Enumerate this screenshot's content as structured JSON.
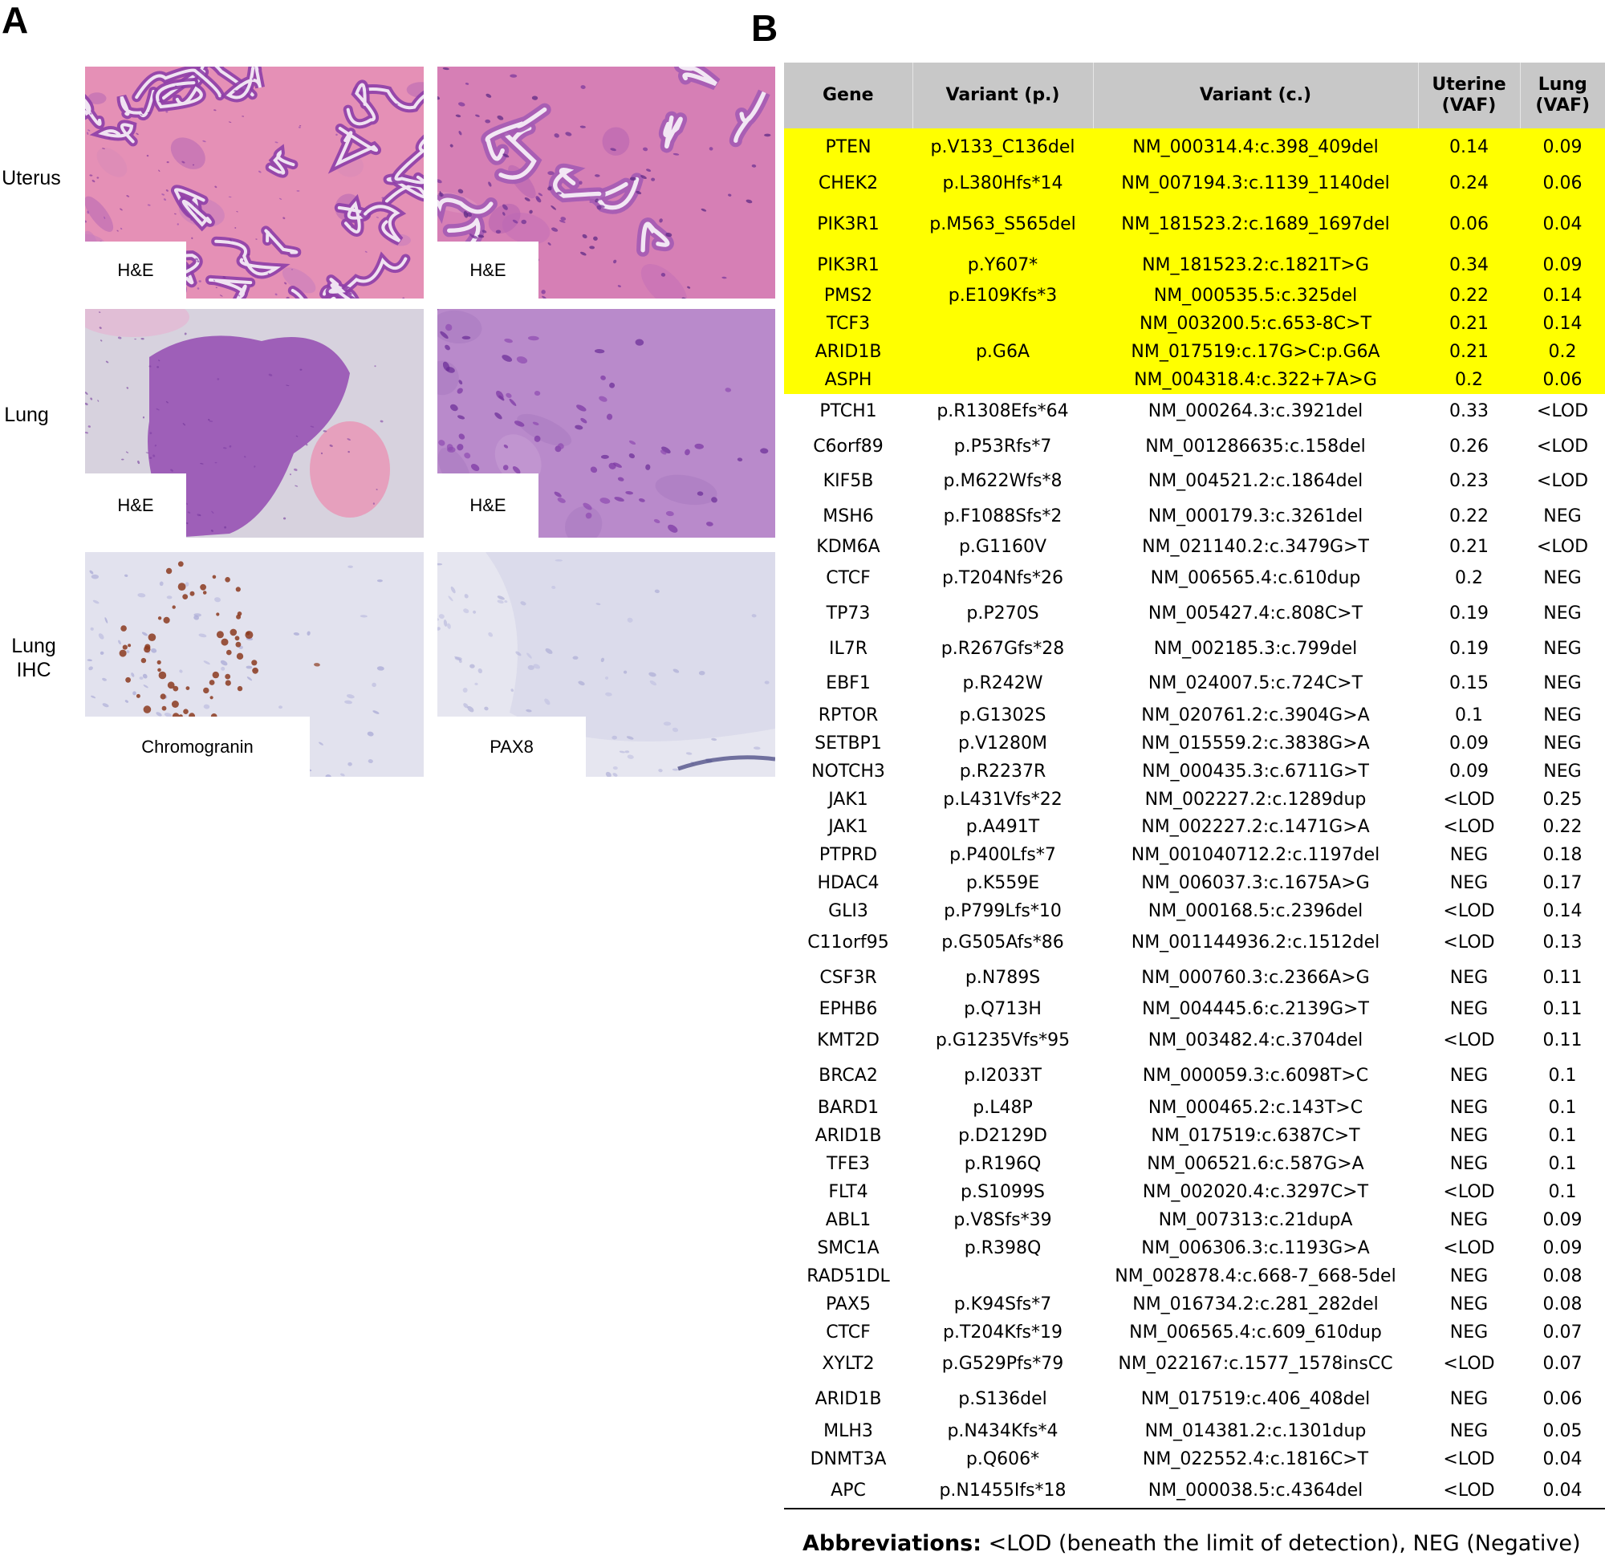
{
  "panels": {
    "a": "A",
    "b": "B"
  },
  "row_labels": {
    "uterus": "Uterus",
    "lung": "Lung",
    "lung_ihc": "Lung\nIHC"
  },
  "images": [
    {
      "id": "uterus-low",
      "label": "H&E",
      "stain": "he"
    },
    {
      "id": "uterus-high",
      "label": "H&E",
      "stain": "he"
    },
    {
      "id": "lung-low",
      "label": "H&E",
      "stain": "he-lung"
    },
    {
      "id": "lung-high",
      "label": "H&E",
      "stain": "he-lung-high"
    },
    {
      "id": "lung-chromogranin",
      "label": "Chromogranin",
      "stain": "ihc-positive"
    },
    {
      "id": "lung-pax8",
      "label": "PAX8",
      "stain": "ihc-negative"
    }
  ],
  "colors": {
    "highlight": "#ffff00",
    "header_bg": "#c8c8c8",
    "he_pink": "#e98fb0",
    "he_purple": "#a052b8",
    "ihc_brown": "#8b3a1e",
    "ihc_blue": "#b8b8d8"
  },
  "table": {
    "headers": [
      "Gene",
      "Variant (p.)",
      "Variant (c.)",
      "Uterine\n(VAF)",
      "Lung\n(VAF)"
    ],
    "rows": [
      {
        "gene": "PTEN",
        "p": "p.V133_C136del",
        "c": "NM_000314.4:c.398_409del",
        "uterine": "0.14",
        "lung": "0.09",
        "highlight": true
      },
      {
        "gene": "CHEK2",
        "p": "p.L380Hfs*14",
        "c": "NM_007194.3:c.1139_1140del",
        "uterine": "0.24",
        "lung": "0.06",
        "highlight": true
      },
      {
        "gene": "PIK3R1",
        "p": "p.M563_S565del",
        "c": "NM_181523.2:c.1689_1697del",
        "uterine": "0.06",
        "lung": "0.04",
        "highlight": true
      },
      {
        "gene": "PIK3R1",
        "p": "p.Y607*",
        "c": "NM_181523.2:c.1821T>G",
        "uterine": "0.34",
        "lung": "0.09",
        "highlight": true
      },
      {
        "gene": "PMS2",
        "p": "p.E109Kfs*3",
        "c": "NM_000535.5:c.325del",
        "uterine": "0.22",
        "lung": "0.14",
        "highlight": true
      },
      {
        "gene": "TCF3",
        "p": "",
        "c": "NM_003200.5:c.653-8C>T",
        "uterine": "0.21",
        "lung": "0.14",
        "highlight": true
      },
      {
        "gene": "ARID1B",
        "p": "p.G6A",
        "c": "NM_017519:c.17G>C:p.G6A",
        "uterine": "0.21",
        "lung": "0.2",
        "highlight": true
      },
      {
        "gene": "ASPH",
        "p": "",
        "c": "NM_004318.4:c.322+7A>G",
        "uterine": "0.2",
        "lung": "0.06",
        "highlight": true
      },
      {
        "gene": "PTCH1",
        "p": "p.R1308Efs*64",
        "c": "NM_000264.3:c.3921del",
        "uterine": "0.33",
        "lung": "<LOD"
      },
      {
        "gene": "C6orf89",
        "p": "p.P53Rfs*7",
        "c": "NM_001286635:c.158del",
        "uterine": "0.26",
        "lung": "<LOD"
      },
      {
        "gene": "KIF5B",
        "p": "p.M622Wfs*8",
        "c": "NM_004521.2:c.1864del",
        "uterine": "0.23",
        "lung": "<LOD"
      },
      {
        "gene": "MSH6",
        "p": "p.F1088Sfs*2",
        "c": "NM_000179.3:c.3261del",
        "uterine": "0.22",
        "lung": "NEG"
      },
      {
        "gene": "KDM6A",
        "p": "p.G1160V",
        "c": "NM_021140.2:c.3479G>T",
        "uterine": "0.21",
        "lung": "<LOD"
      },
      {
        "gene": "CTCF",
        "p": "p.T204Nfs*26",
        "c": "NM_006565.4:c.610dup",
        "uterine": "0.2",
        "lung": "NEG"
      },
      {
        "gene": "TP73",
        "p": "p.P270S",
        "c": "NM_005427.4:c.808C>T",
        "uterine": "0.19",
        "lung": "NEG"
      },
      {
        "gene": "IL7R",
        "p": "p.R267Gfs*28",
        "c": "NM_002185.3:c.799del",
        "uterine": "0.19",
        "lung": "NEG"
      },
      {
        "gene": "EBF1",
        "p": "p.R242W",
        "c": "NM_024007.5:c.724C>T",
        "uterine": "0.15",
        "lung": "NEG"
      },
      {
        "gene": "RPTOR",
        "p": "p.G1302S",
        "c": "NM_020761.2:c.3904G>A",
        "uterine": "0.1",
        "lung": "NEG"
      },
      {
        "gene": "SETBP1",
        "p": "p.V1280M",
        "c": "NM_015559.2:c.3838G>A",
        "uterine": "0.09",
        "lung": "NEG"
      },
      {
        "gene": "NOTCH3",
        "p": "p.R2237R",
        "c": "NM_000435.3:c.6711G>T",
        "uterine": "0.09",
        "lung": "NEG"
      },
      {
        "gene": "JAK1",
        "p": "p.L431Vfs*22",
        "c": "NM_002227.2:c.1289dup",
        "uterine": "<LOD",
        "lung": "0.25"
      },
      {
        "gene": "JAK1",
        "p": "p.A491T",
        "c": "NM_002227.2:c.1471G>A",
        "uterine": "<LOD",
        "lung": "0.22"
      },
      {
        "gene": "PTPRD",
        "p": "p.P400Lfs*7",
        "c": "NM_001040712.2:c.1197del",
        "uterine": "NEG",
        "lung": "0.18"
      },
      {
        "gene": "HDAC4",
        "p": "p.K559E",
        "c": "NM_006037.3:c.1675A>G",
        "uterine": "NEG",
        "lung": "0.17"
      },
      {
        "gene": "GLI3",
        "p": "p.P799Lfs*10",
        "c": "NM_000168.5:c.2396del",
        "uterine": "<LOD",
        "lung": "0.14"
      },
      {
        "gene": "C11orf95",
        "p": "p.G505Afs*86",
        "c": "NM_001144936.2:c.1512del",
        "uterine": "<LOD",
        "lung": "0.13"
      },
      {
        "gene": "CSF3R",
        "p": "p.N789S",
        "c": "NM_000760.3:c.2366A>G",
        "uterine": "NEG",
        "lung": "0.11"
      },
      {
        "gene": "EPHB6",
        "p": "p.Q713H",
        "c": "NM_004445.6:c.2139G>T",
        "uterine": "NEG",
        "lung": "0.11"
      },
      {
        "gene": "KMT2D",
        "p": "p.G1235Vfs*95",
        "c": "NM_003482.4:c.3704del",
        "uterine": "<LOD",
        "lung": "0.11"
      },
      {
        "gene": "BRCA2",
        "p": "p.I2033T",
        "c": "NM_000059.3:c.6098T>C",
        "uterine": "NEG",
        "lung": "0.1"
      },
      {
        "gene": "BARD1",
        "p": "p.L48P",
        "c": "NM_000465.2:c.143T>C",
        "uterine": "NEG",
        "lung": "0.1"
      },
      {
        "gene": "ARID1B",
        "p": "p.D2129D",
        "c": "NM_017519:c.6387C>T",
        "uterine": "NEG",
        "lung": "0.1"
      },
      {
        "gene": "TFE3",
        "p": "p.R196Q",
        "c": "NM_006521.6:c.587G>A",
        "uterine": "NEG",
        "lung": "0.1"
      },
      {
        "gene": "FLT4",
        "p": "p.S1099S",
        "c": "NM_002020.4:c.3297C>T",
        "uterine": "<LOD",
        "lung": "0.1"
      },
      {
        "gene": "ABL1",
        "p": "p.V8Sfs*39",
        "c": "NM_007313:c.21dupA",
        "uterine": "NEG",
        "lung": "0.09"
      },
      {
        "gene": "SMC1A",
        "p": "p.R398Q",
        "c": "NM_006306.3:c.1193G>A",
        "uterine": "<LOD",
        "lung": "0.09"
      },
      {
        "gene": "RAD51DL",
        "p": "",
        "c": "NM_002878.4:c.668-7_668-5del",
        "uterine": "NEG",
        "lung": "0.08"
      },
      {
        "gene": "PAX5",
        "p": "p.K94Sfs*7",
        "c": "NM_016734.2:c.281_282del",
        "uterine": "NEG",
        "lung": "0.08"
      },
      {
        "gene": "CTCF",
        "p": "p.T204Kfs*19",
        "c": "NM_006565.4:c.609_610dup",
        "uterine": "NEG",
        "lung": "0.07"
      },
      {
        "gene": "XYLT2",
        "p": "p.G529Pfs*79",
        "c": "NM_022167:c.1577_1578insCC",
        "uterine": "<LOD",
        "lung": "0.07"
      },
      {
        "gene": "ARID1B",
        "p": "p.S136del",
        "c": "NM_017519:c.406_408del",
        "uterine": "NEG",
        "lung": "0.06"
      },
      {
        "gene": "MLH3",
        "p": "p.N434Kfs*4",
        "c": "NM_014381.2:c.1301dup",
        "uterine": "NEG",
        "lung": "0.05"
      },
      {
        "gene": "DNMT3A",
        "p": "p.Q606*",
        "c": "NM_022552.4:c.1816C>T",
        "uterine": "<LOD",
        "lung": "0.04"
      },
      {
        "gene": "APC",
        "p": "p.N1455Ifs*18",
        "c": "NM_000038.5:c.4364del",
        "uterine": "<LOD",
        "lung": "0.04"
      }
    ]
  },
  "abbreviations": {
    "label": "Abbreviations:",
    "text": " <LOD (beneath the limit of detection), NEG (Negative)"
  }
}
